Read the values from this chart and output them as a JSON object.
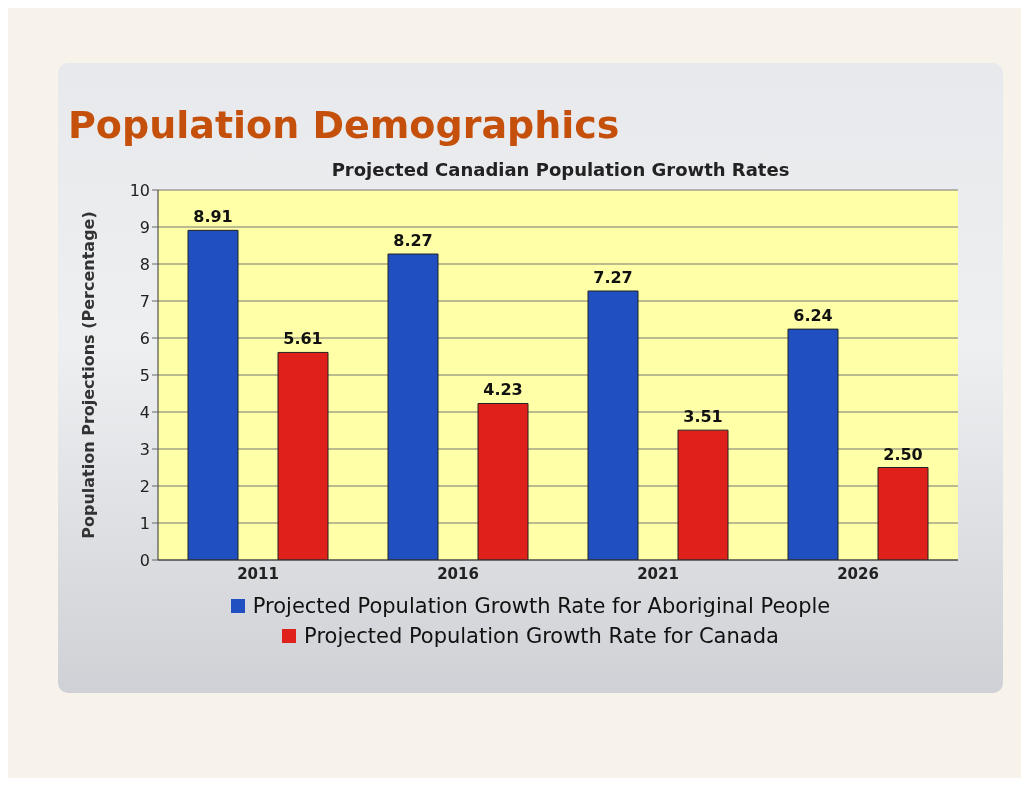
{
  "chart_data": {
    "type": "bar",
    "title": "Population Demographics",
    "subtitle": "Projected Canadian Population Growth Rates",
    "ylabel": "Population Projections  (Percentage)",
    "categories": [
      "2011",
      "2016",
      "2021",
      "2026"
    ],
    "series": [
      {
        "name": "Projected Population Growth Rate for Aboriginal People",
        "color": "#1f4fc0",
        "values": [
          8.91,
          8.27,
          7.27,
          6.24
        ],
        "value_labels": [
          "8.91",
          "8.27",
          "7.27",
          "6.24"
        ]
      },
      {
        "name": "Projected Population Growth Rate for Canada",
        "color": "#e0201a",
        "values": [
          5.61,
          4.23,
          3.51,
          2.5
        ],
        "value_labels": [
          "5.61",
          "4.23",
          "3.51",
          "2.50"
        ]
      }
    ],
    "ylim": [
      0,
      10
    ],
    "yticks": [
      0,
      1,
      2,
      3,
      4,
      5,
      6,
      7,
      8,
      9,
      10
    ],
    "grid": "y",
    "legend": "bottom"
  }
}
